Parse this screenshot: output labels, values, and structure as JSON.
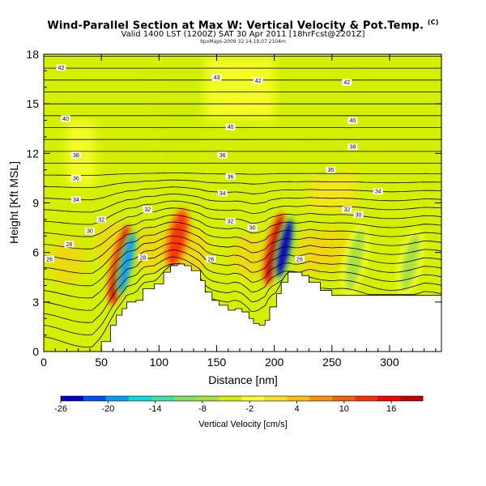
{
  "title": "Wind-Parallel Section at Max W: Vertical Velocity & Pot.Temp.",
  "title_mark": "(C)",
  "subtitle": "Valid 1400 LST (1200Z) SAT 30 Apr 2011 [18hrFcst@2201Z]",
  "subsubtitle": "bpxMaps-2009 32 14,19,07 2104m",
  "chart_data": {
    "type": "heatmap",
    "xlabel": "Distance [nm]",
    "ylabel": "Height [Kft MSL]",
    "xlim": [
      0,
      345
    ],
    "ylim": [
      0,
      18
    ],
    "x_ticks": [
      0,
      50,
      100,
      150,
      200,
      250,
      300
    ],
    "y_ticks": [
      0,
      3,
      6,
      9,
      12,
      15,
      18
    ],
    "colorbar": {
      "label": "Vertical Velocity [cm/s]",
      "range": [
        -26,
        20
      ],
      "ticks": [
        -26,
        -20,
        -14,
        -8,
        -2,
        4,
        10,
        16
      ],
      "colors": [
        "#0000c8",
        "#0050ff",
        "#00a0ff",
        "#00e0e0",
        "#40e0a0",
        "#80e060",
        "#a8e040",
        "#d0f000",
        "#ffff30",
        "#ffe020",
        "#ffc010",
        "#ff9000",
        "#ff6000",
        "#ff3000",
        "#ff0000",
        "#c80000"
      ]
    },
    "contour_series": "Potential Temperature",
    "theta_labels": [
      {
        "value": 26,
        "x": 5,
        "y": 5.6
      },
      {
        "value": 28,
        "x": 22,
        "y": 6.5
      },
      {
        "value": 30,
        "x": 40,
        "y": 7.3
      },
      {
        "value": 32,
        "x": 50,
        "y": 8.0
      },
      {
        "value": 34,
        "x": 28,
        "y": 9.2
      },
      {
        "value": 36,
        "x": 28,
        "y": 10.5
      },
      {
        "value": 38,
        "x": 28,
        "y": 11.9
      },
      {
        "value": 40,
        "x": 19,
        "y": 14.1
      },
      {
        "value": 42,
        "x": 15,
        "y": 17.2
      },
      {
        "value": 28,
        "x": 86,
        "y": 5.7
      },
      {
        "value": 32,
        "x": 90,
        "y": 8.6
      },
      {
        "value": 34,
        "x": 155,
        "y": 9.6
      },
      {
        "value": 40,
        "x": 162,
        "y": 13.6
      },
      {
        "value": 42,
        "x": 186,
        "y": 16.4
      },
      {
        "value": 43,
        "x": 150,
        "y": 16.6
      },
      {
        "value": 36,
        "x": 155,
        "y": 11.9
      },
      {
        "value": 36,
        "x": 162,
        "y": 10.6
      },
      {
        "value": 26,
        "x": 145,
        "y": 5.6
      },
      {
        "value": 32,
        "x": 162,
        "y": 7.9
      },
      {
        "value": 30,
        "x": 181,
        "y": 7.5
      },
      {
        "value": 26,
        "x": 222,
        "y": 5.6
      },
      {
        "value": 36,
        "x": 249,
        "y": 11.0
      },
      {
        "value": 38,
        "x": 268,
        "y": 12.4
      },
      {
        "value": 40,
        "x": 268,
        "y": 14.0
      },
      {
        "value": 42,
        "x": 263,
        "y": 16.3
      },
      {
        "value": 32,
        "x": 263,
        "y": 8.6
      },
      {
        "value": 30,
        "x": 273,
        "y": 8.3
      },
      {
        "value": 34,
        "x": 290,
        "y": 9.7
      }
    ],
    "terrain_profile": {
      "x": [
        0,
        42,
        50,
        58,
        63,
        68,
        72,
        80,
        86,
        96,
        104,
        110,
        116,
        122,
        128,
        136,
        140,
        146,
        152,
        160,
        166,
        172,
        178,
        182,
        187,
        192,
        196,
        202,
        206,
        212,
        218,
        224,
        230,
        240,
        250,
        260,
        270,
        280,
        290,
        300,
        310,
        320,
        330,
        345
      ],
      "height": [
        0,
        0,
        0.6,
        1.6,
        2.2,
        2.6,
        3.0,
        3.1,
        3.8,
        4.1,
        4.8,
        5.2,
        5.3,
        5.2,
        4.9,
        4.3,
        3.6,
        3.1,
        2.8,
        2.5,
        2.6,
        2.4,
        2.0,
        1.7,
        1.6,
        1.9,
        2.7,
        3.5,
        4.2,
        4.8,
        4.8,
        4.6,
        4.2,
        3.7,
        3.4,
        3.4,
        3.4,
        3.4,
        3.4,
        3.4,
        3.4,
        3.4,
        3.4,
        3.0
      ]
    },
    "features": [
      {
        "kind": "updraft",
        "x": 66,
        "y_bottom": 3.0,
        "y_top": 7.5,
        "w": 18
      },
      {
        "kind": "downdraft",
        "x": 72,
        "y_bottom": 3.5,
        "y_top": 7.2,
        "w": -18
      },
      {
        "kind": "updraft",
        "x": 116,
        "y_bottom": 5.2,
        "y_top": 8.5,
        "w": 14
      },
      {
        "kind": "updraft",
        "x": 200,
        "y_bottom": 4.2,
        "y_top": 8.2,
        "w": 20
      },
      {
        "kind": "downdraft",
        "x": 209,
        "y_bottom": 4.5,
        "y_top": 8.0,
        "w": -24
      },
      {
        "kind": "downdraft",
        "x": 270,
        "y_bottom": 3.6,
        "y_top": 7.5,
        "w": -6
      },
      {
        "kind": "downdraft",
        "x": 318,
        "y_bottom": 3.6,
        "y_top": 7.2,
        "w": -6
      },
      {
        "kind": "sink-region",
        "x": 100,
        "y_bottom": 9,
        "y_top": 16,
        "w": -4
      }
    ]
  }
}
